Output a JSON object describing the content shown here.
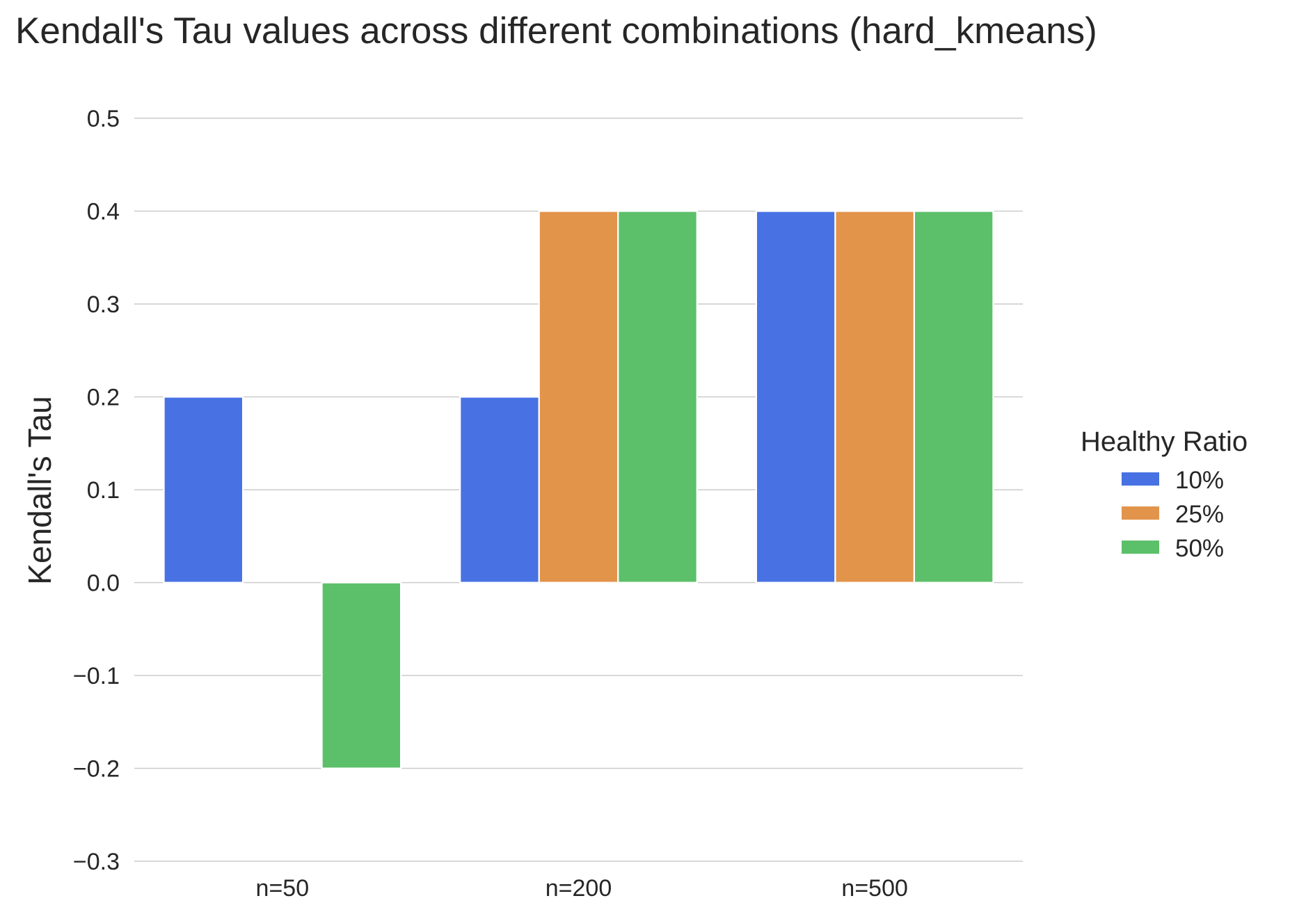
{
  "chart_data": {
    "type": "bar",
    "title": "Kendall's Tau values across different combinations (hard_kmeans)",
    "xlabel": "",
    "ylabel": "Kendall's Tau",
    "categories": [
      "n=50",
      "n=200",
      "n=500"
    ],
    "series": [
      {
        "name": "10%",
        "color": "#4872e3",
        "values": [
          0.2,
          0.2,
          0.4
        ]
      },
      {
        "name": "25%",
        "color": "#e2944b",
        "values": [
          0.0,
          0.4,
          0.4
        ]
      },
      {
        "name": "50%",
        "color": "#5cc06a",
        "values": [
          -0.2,
          0.4,
          0.4
        ]
      }
    ],
    "ylim": [
      -0.3,
      0.5
    ],
    "yticks": [
      -0.3,
      -0.2,
      -0.1,
      0.0,
      0.1,
      0.2,
      0.3,
      0.4,
      0.5
    ],
    "ytick_labels": [
      "−0.3",
      "−0.2",
      "−0.1",
      "0.0",
      "0.1",
      "0.2",
      "0.3",
      "0.4",
      "0.5"
    ],
    "grid": "horizontal",
    "legend": {
      "title": "Healthy Ratio",
      "placement": "right"
    }
  }
}
